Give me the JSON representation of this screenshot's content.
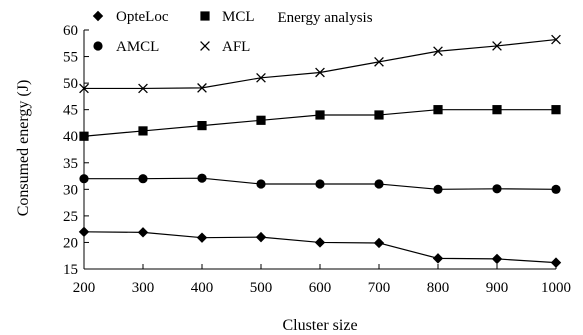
{
  "chart_data": {
    "type": "line",
    "title": "Energy analysis",
    "xlabel": "Cluster size",
    "ylabel": "Consumed energy (J)",
    "x": [
      200,
      300,
      400,
      500,
      600,
      700,
      800,
      900,
      1000
    ],
    "xlim": [
      200,
      1000
    ],
    "ylim": [
      15,
      60
    ],
    "xticks": [
      200,
      300,
      400,
      500,
      600,
      700,
      800,
      900,
      1000
    ],
    "yticks": [
      15,
      20,
      25,
      30,
      35,
      40,
      45,
      50,
      55,
      60
    ],
    "grid": false,
    "legend_position": "top-left",
    "series": [
      {
        "name": "OpteLoc",
        "marker": "diamond",
        "values": [
          22,
          21.9,
          20.9,
          21,
          20,
          19.9,
          17,
          16.9,
          16.2
        ]
      },
      {
        "name": "MCL",
        "marker": "square",
        "values": [
          40,
          41,
          42,
          43,
          44,
          44,
          45,
          45,
          45
        ]
      },
      {
        "name": "AMCL",
        "marker": "circle",
        "values": [
          32,
          32,
          32.1,
          31,
          31,
          31,
          30,
          30.1,
          30
        ]
      },
      {
        "name": "AFL",
        "marker": "cross",
        "values": [
          49,
          49,
          49.1,
          51,
          52,
          54,
          56,
          57,
          58.2
        ]
      }
    ],
    "line_color": "#000000"
  }
}
